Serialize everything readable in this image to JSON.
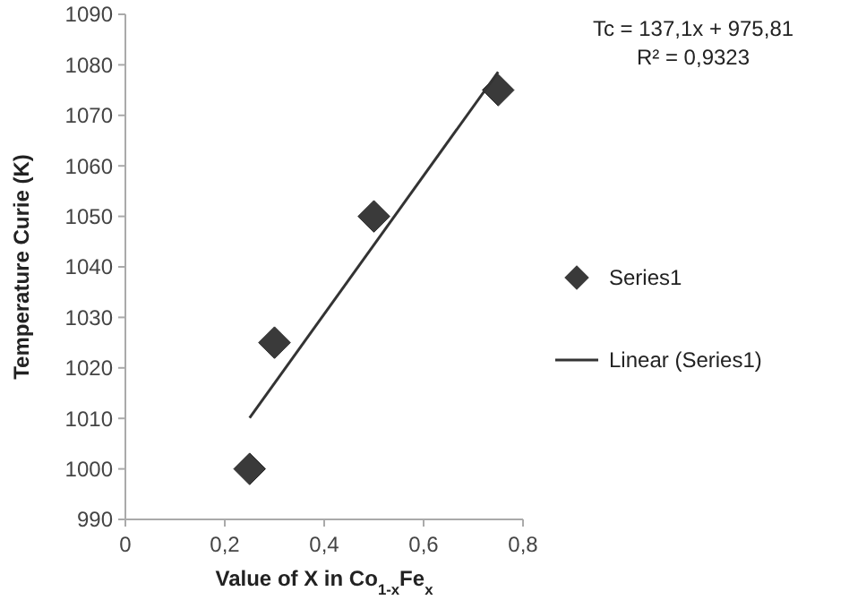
{
  "chart_data": {
    "type": "scatter",
    "xlabel": "Value of X in Co$_{1-x}$Fe$_{x}$",
    "ylabel": "Temperature Curie (K)",
    "series": [
      {
        "name": "Series1",
        "type": "scatter",
        "color": "#3a3a3a",
        "marker": "diamond",
        "x": [
          0.25,
          0.3,
          0.5,
          0.75
        ],
        "values": [
          1000,
          1025,
          1050,
          1075
        ]
      },
      {
        "name": "Linear (Series1)",
        "type": "line",
        "color": "#333333",
        "marker": "none",
        "line_style": "solid",
        "x": [
          0.25,
          0.75
        ],
        "values": [
          1010.1,
          1078.6
        ]
      }
    ],
    "xlim": [
      0,
      0.8
    ],
    "xticks": [
      0,
      {
        "value": 0.2,
        "label": "0,2"
      },
      {
        "value": 0.4,
        "label": "0,4"
      },
      {
        "value": 0.6,
        "label": "0,6"
      },
      {
        "value": 0.8,
        "label": "0,8"
      }
    ],
    "ylim": [
      990,
      1090
    ],
    "yticks": [
      990,
      1000,
      1010,
      1020,
      1030,
      1040,
      1050,
      1060,
      1070,
      1080,
      1090
    ],
    "annotations": [
      "Tc = 137,1x + 975,81",
      "R² = 0,9323"
    ],
    "legend": "right",
    "grid": false
  }
}
